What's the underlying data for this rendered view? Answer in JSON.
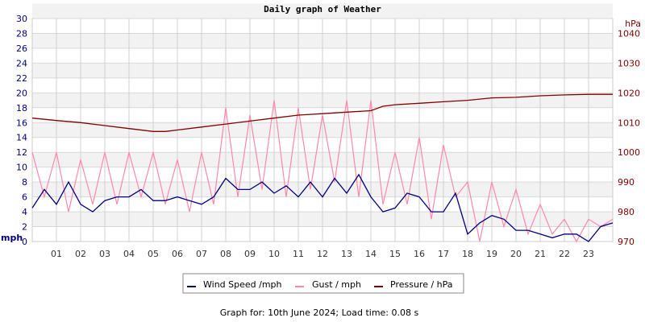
{
  "chart_data": {
    "type": "line",
    "title": "Daily graph of Weather",
    "ylabel_left": "mph",
    "ylabel_right": "hPa",
    "ylim_left": [
      0,
      30
    ],
    "ylim_right": [
      970,
      1045
    ],
    "yticks_left": [
      "0",
      "2",
      "4",
      "6",
      "8",
      "10",
      "12",
      "14",
      "16",
      "18",
      "20",
      "22",
      "24",
      "26",
      "28",
      "30"
    ],
    "yticks_right": [
      "970",
      "980",
      "990",
      "1000",
      "1010",
      "1020",
      "1030",
      "1040"
    ],
    "xlim": [
      0,
      24
    ],
    "xticks": [
      "01",
      "02",
      "03",
      "04",
      "05",
      "06",
      "07",
      "08",
      "09",
      "10",
      "11",
      "12",
      "13",
      "14",
      "15",
      "16",
      "17",
      "18",
      "19",
      "20",
      "21",
      "22",
      "23"
    ],
    "grid": true,
    "legend_position": "bottom",
    "colors": {
      "wind": "#000080",
      "gust": "#ff88aa",
      "pressure": "#800000",
      "left_axis": "#000080",
      "right_axis": "#800000"
    },
    "series": [
      {
        "name": "Wind Speed /mph",
        "axis": "left",
        "x": [
          0,
          0.5,
          1,
          1.5,
          2,
          2.5,
          3,
          3.5,
          4,
          4.5,
          5,
          5.5,
          6,
          6.5,
          7,
          7.5,
          8,
          8.5,
          9,
          9.5,
          10,
          10.5,
          11,
          11.5,
          12,
          12.5,
          13,
          13.5,
          14,
          14.5,
          15,
          15.5,
          16,
          16.5,
          17,
          17.5,
          18,
          18.5,
          19,
          19.5,
          20,
          20.5,
          21,
          21.5,
          22,
          22.5,
          23,
          23.5,
          24
        ],
        "values": [
          4.5,
          7,
          5,
          8,
          5,
          4,
          5.5,
          6,
          6,
          7,
          5.5,
          5.5,
          6,
          5.5,
          5,
          6,
          8.5,
          7,
          7,
          8,
          6.5,
          7.5,
          6,
          8,
          6,
          8.5,
          6.5,
          9,
          6,
          4,
          4.5,
          6.5,
          6,
          4,
          4,
          6.5,
          1,
          2.5,
          3.5,
          3,
          1.5,
          1.5,
          1,
          0.5,
          1,
          1,
          0,
          2,
          2.5
        ]
      },
      {
        "name": "Gust / mph",
        "axis": "left",
        "x": [
          0,
          0.5,
          1,
          1.5,
          2,
          2.5,
          3,
          3.5,
          4,
          4.5,
          5,
          5.5,
          6,
          6.5,
          7,
          7.5,
          8,
          8.5,
          9,
          9.5,
          10,
          10.5,
          11,
          11.5,
          12,
          12.5,
          13,
          13.5,
          14,
          14.5,
          15,
          15.5,
          16,
          16.5,
          17,
          17.5,
          18,
          18.5,
          19,
          19.5,
          20,
          20.5,
          21,
          21.5,
          22,
          22.5,
          23,
          23.5,
          24
        ],
        "values": [
          12,
          6,
          12,
          4,
          11,
          5,
          12,
          5,
          12,
          6,
          12,
          5,
          11,
          4,
          12,
          5,
          18,
          6,
          17,
          7,
          19,
          6,
          18,
          7,
          17,
          8,
          19,
          6,
          19,
          5,
          12,
          5,
          14,
          3,
          13,
          6,
          8,
          0,
          8,
          2,
          7,
          1,
          5,
          1,
          3,
          0,
          3,
          2,
          3
        ]
      },
      {
        "name": "Pressure / hPa",
        "axis": "right",
        "x": [
          0,
          1,
          2,
          3,
          4,
          5,
          5.5,
          6,
          7,
          8,
          9,
          10,
          11,
          12,
          13,
          14,
          14.5,
          15,
          16,
          17,
          18,
          19,
          20,
          21,
          22,
          23,
          24
        ],
        "values": [
          1011.5,
          1010.7,
          1010,
          1009,
          1008,
          1007,
          1007,
          1007.5,
          1008.5,
          1009.5,
          1010.5,
          1011.5,
          1012.5,
          1013,
          1013.5,
          1014,
          1015.5,
          1016,
          1016.5,
          1017,
          1017.5,
          1018.3,
          1018.5,
          1019,
          1019.3,
          1019.5,
          1019.5
        ]
      }
    ]
  },
  "footer": "Graph for: 10th June 2024; Load time: 0.08 s"
}
